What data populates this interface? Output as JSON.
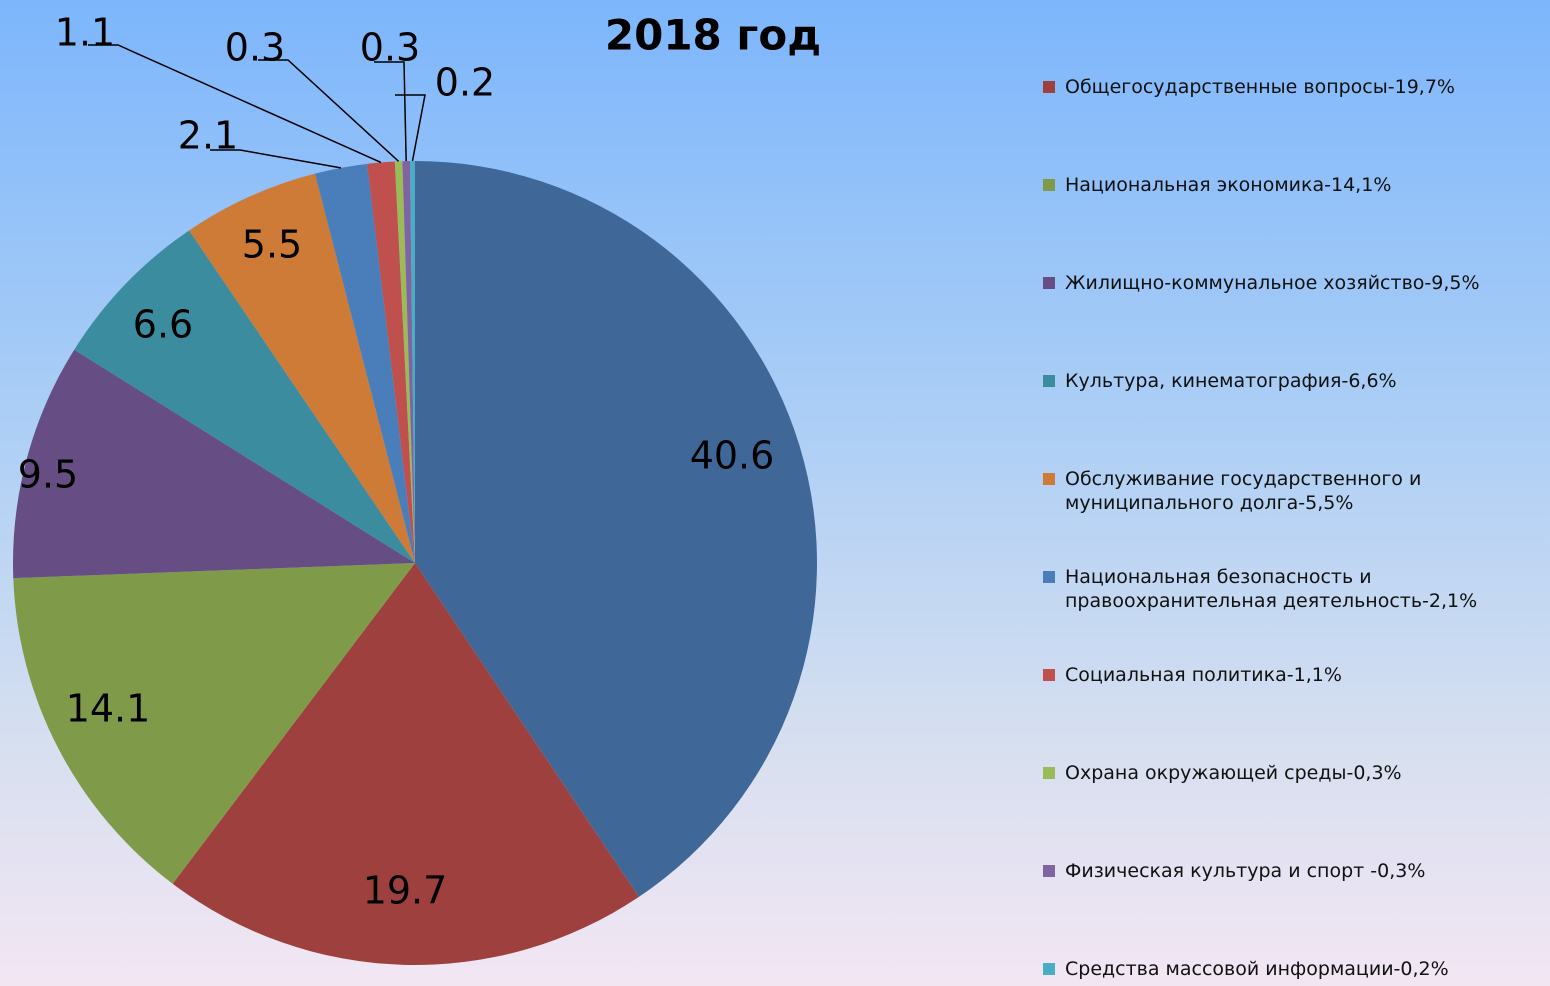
{
  "chart_data": {
    "type": "pie",
    "title": "2018 год",
    "categories": [
      null,
      "Общегосударственные вопросы-19,7%",
      "Национальная экономика-14,1%",
      "Жилищно-коммунальное хозяйство-9,5%",
      "Культура,  кинематография-6,6%",
      "Обслуживание  государственного и муниципального долга-5,5%",
      "Национальная безопасность и правоохранительная деятельность-2,1%",
      "Социальная политика-1,1%",
      "Охрана окружающей среды-0,3%",
      "Физическая культура и спорт -0,3%",
      "Средства массовой информации-0,2%"
    ],
    "values": [
      40.6,
      19.7,
      14.1,
      9.5,
      6.6,
      5.5,
      2.1,
      1.1,
      0.3,
      0.3,
      0.2
    ],
    "colors": [
      "#3f6898",
      "#9e413e",
      "#7f9a48",
      "#664d83",
      "#3a8c9e",
      "#cd7b37",
      "#4a7ebb",
      "#c0504d",
      "#9bbb59",
      "#8064a2",
      "#4bacc6"
    ],
    "legend": "right"
  }
}
